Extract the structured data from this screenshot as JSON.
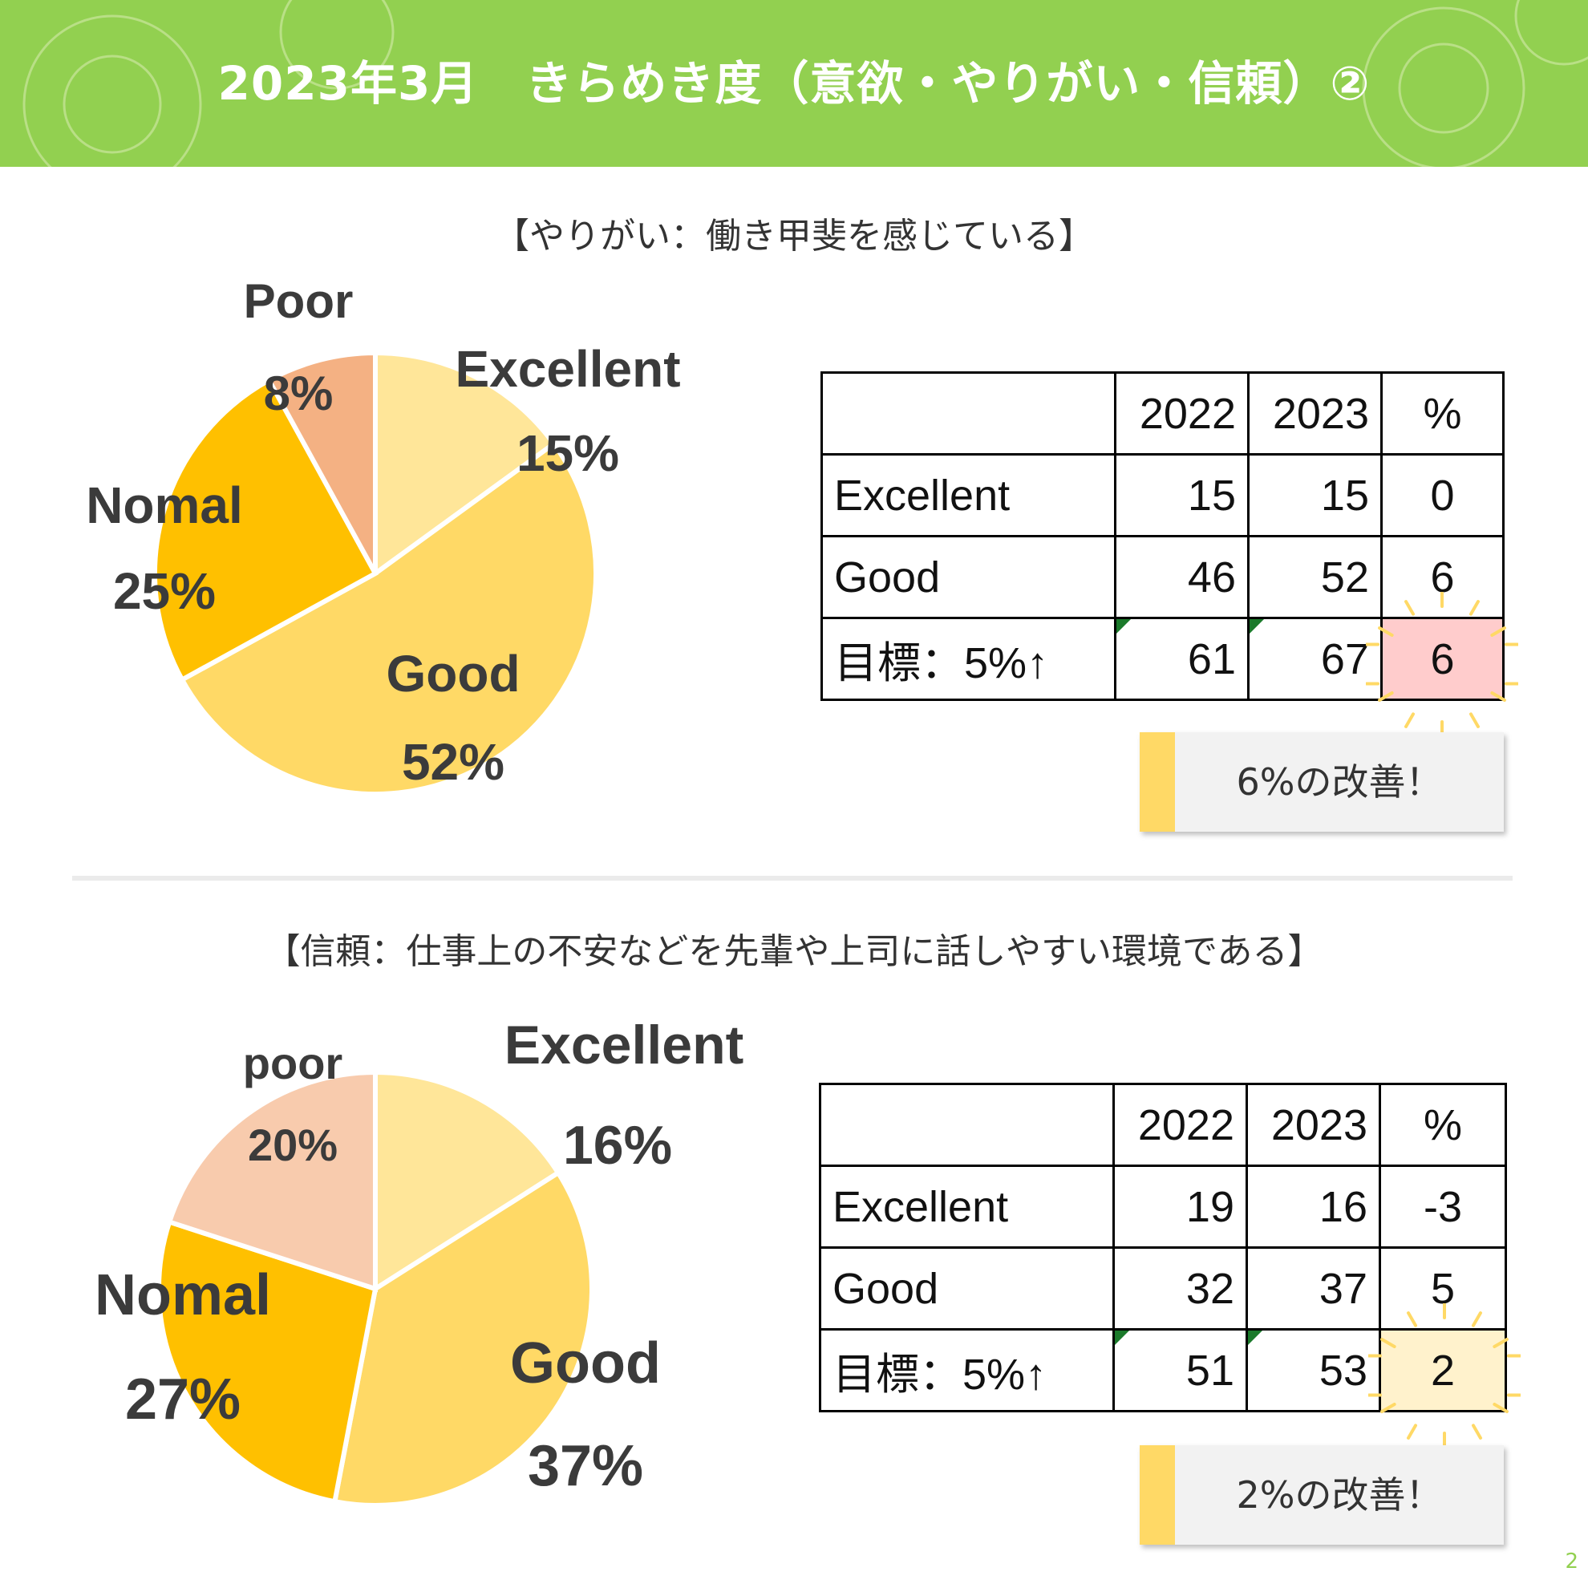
{
  "header": {
    "title": "2023年3月　きらめき度（意欲・やりがい・信頼）②"
  },
  "colors": {
    "header_bg": "#92d050",
    "excellent": "#ffe699",
    "good": "#ffd966",
    "nomal": "#ffc000",
    "poor_1": "#f4b183",
    "poor_2": "#f8cbad",
    "highlight_red": "#ffcccc",
    "highlight_yellow": "#fff2cc",
    "callout_bar": "#ffd966"
  },
  "sections": [
    {
      "title": "【やりがい：働き甲斐を感じている】",
      "chart_data": {
        "type": "pie",
        "slices": [
          {
            "name": "Excellent",
            "value": 15,
            "label": "15%"
          },
          {
            "name": "Good",
            "value": 52,
            "label": "52%"
          },
          {
            "name": "Nomal",
            "value": 25,
            "label": "25%"
          },
          {
            "name": "Poor",
            "value": 8,
            "label": "8%"
          }
        ]
      },
      "table": {
        "headers": [
          "",
          "2022",
          "2023",
          "%"
        ],
        "rows": [
          [
            "Excellent",
            "15",
            "15",
            "0"
          ],
          [
            "Good",
            "46",
            "52",
            "6"
          ],
          [
            "目標：5%↑",
            "61",
            "67",
            "6"
          ]
        ]
      },
      "callout": "6%の改善！"
    },
    {
      "title": "【信頼：仕事上の不安などを先輩や上司に話しやすい環境である】",
      "chart_data": {
        "type": "pie",
        "slices": [
          {
            "name": "Excellent",
            "value": 16,
            "label": "16%"
          },
          {
            "name": "Good",
            "value": 37,
            "label": "37%"
          },
          {
            "name": "Nomal",
            "value": 27,
            "label": "27%"
          },
          {
            "name": "poor",
            "value": 20,
            "label": "20%"
          }
        ]
      },
      "table": {
        "headers": [
          "",
          "2022",
          "2023",
          "%"
        ],
        "rows": [
          [
            "Excellent",
            "19",
            "16",
            "-3"
          ],
          [
            "Good",
            "32",
            "37",
            "5"
          ],
          [
            "目標：5%↑",
            "51",
            "53",
            "2"
          ]
        ]
      },
      "callout": "2%の改善！"
    }
  ],
  "page_number": "2"
}
